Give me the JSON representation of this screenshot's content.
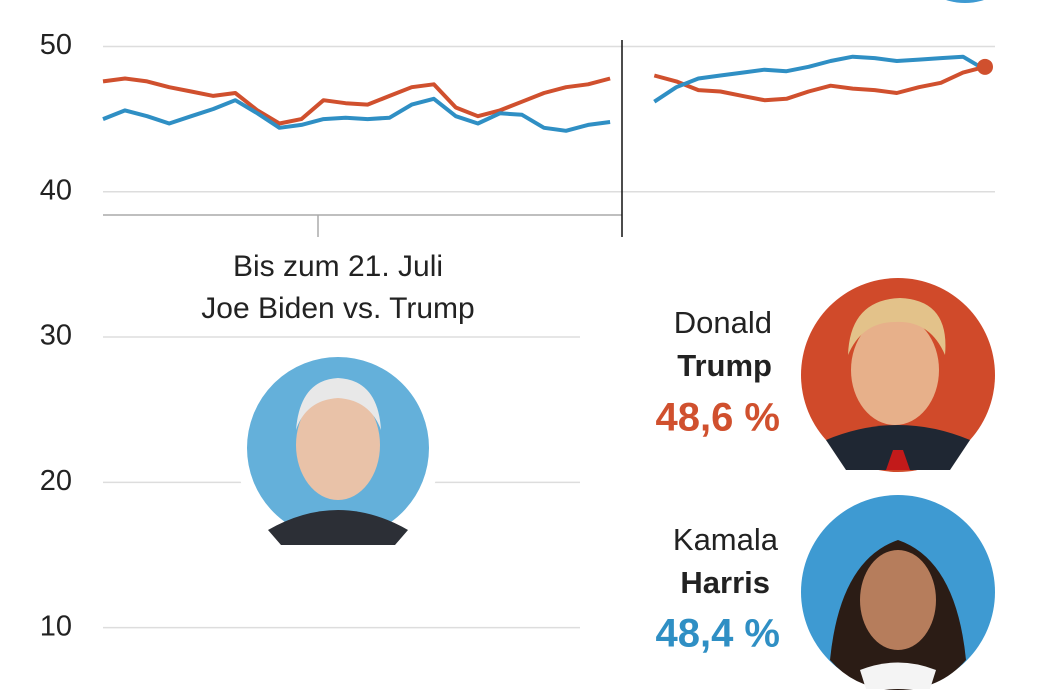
{
  "chart_data": {
    "type": "line",
    "categories": [
      null,
      null,
      null,
      null,
      null,
      null,
      null,
      null,
      null,
      null,
      null,
      null,
      null,
      null,
      null,
      null,
      null,
      null,
      null,
      null,
      null,
      null,
      null,
      null,
      null,
      null,
      null,
      null,
      null,
      null,
      null,
      null,
      null,
      null,
      null,
      null,
      null,
      null,
      null,
      null,
      null
    ],
    "series": [
      {
        "color": "#d0502e",
        "values": [
          47.6,
          47.8,
          47.6,
          47.2,
          46.9,
          46.6,
          46.8,
          45.6,
          44.7,
          45.0,
          46.3,
          46.1,
          46.0,
          46.6,
          47.2,
          47.4,
          45.8,
          45.2,
          45.6,
          46.2,
          46.8,
          47.2,
          47.4,
          47.8,
          null,
          48.0,
          47.6,
          47.0,
          46.9,
          46.6,
          46.3,
          46.4,
          46.9,
          47.3,
          47.1,
          47.0,
          46.8,
          47.2,
          47.5,
          48.2,
          48.6
        ],
        "value_labels": [
          null,
          null,
          null,
          null,
          null,
          null,
          null,
          null,
          null,
          null,
          null,
          null,
          null,
          null,
          null,
          null,
          null,
          null,
          null,
          null,
          null,
          null,
          null,
          null,
          null,
          null,
          null,
          null,
          null,
          null,
          null,
          null,
          null,
          null,
          null,
          null,
          null,
          null,
          null,
          null,
          "48,6 %"
        ]
      },
      {
        "color": "#2f8fc4",
        "values": [
          45.0,
          45.6,
          45.2,
          44.7,
          45.2,
          45.7,
          46.3,
          45.4,
          44.4,
          44.6,
          45.0,
          45.1,
          45.0,
          45.1,
          46.0,
          46.4,
          45.2,
          44.7,
          45.4,
          45.3,
          44.4,
          44.2,
          44.6,
          44.8,
          null,
          46.2,
          47.2,
          47.8,
          48.0,
          48.2,
          48.4,
          48.3,
          48.6,
          49.0,
          49.3,
          49.2,
          49.0,
          49.1,
          49.2,
          49.3,
          48.4
        ],
        "value_labels": [
          null,
          null,
          null,
          null,
          null,
          null,
          null,
          null,
          null,
          null,
          null,
          null,
          null,
          null,
          null,
          null,
          null,
          null,
          null,
          null,
          null,
          null,
          null,
          null,
          null,
          null,
          null,
          null,
          null,
          null,
          null,
          null,
          null,
          null,
          null,
          null,
          null,
          null,
          null,
          null,
          "48,4 %"
        ]
      }
    ],
    "ylim": [
      5.5,
      53.2
    ],
    "yticks": [
      10,
      20,
      30,
      40,
      50
    ],
    "grid": true,
    "annotations": [
      "Bis zum 21. Juli",
      "Joe Biden vs. Trump"
    ],
    "candidates": [
      {
        "first": "Donald",
        "last": "Trump"
      },
      {
        "first": "Kamala",
        "last": "Harris"
      }
    ]
  }
}
